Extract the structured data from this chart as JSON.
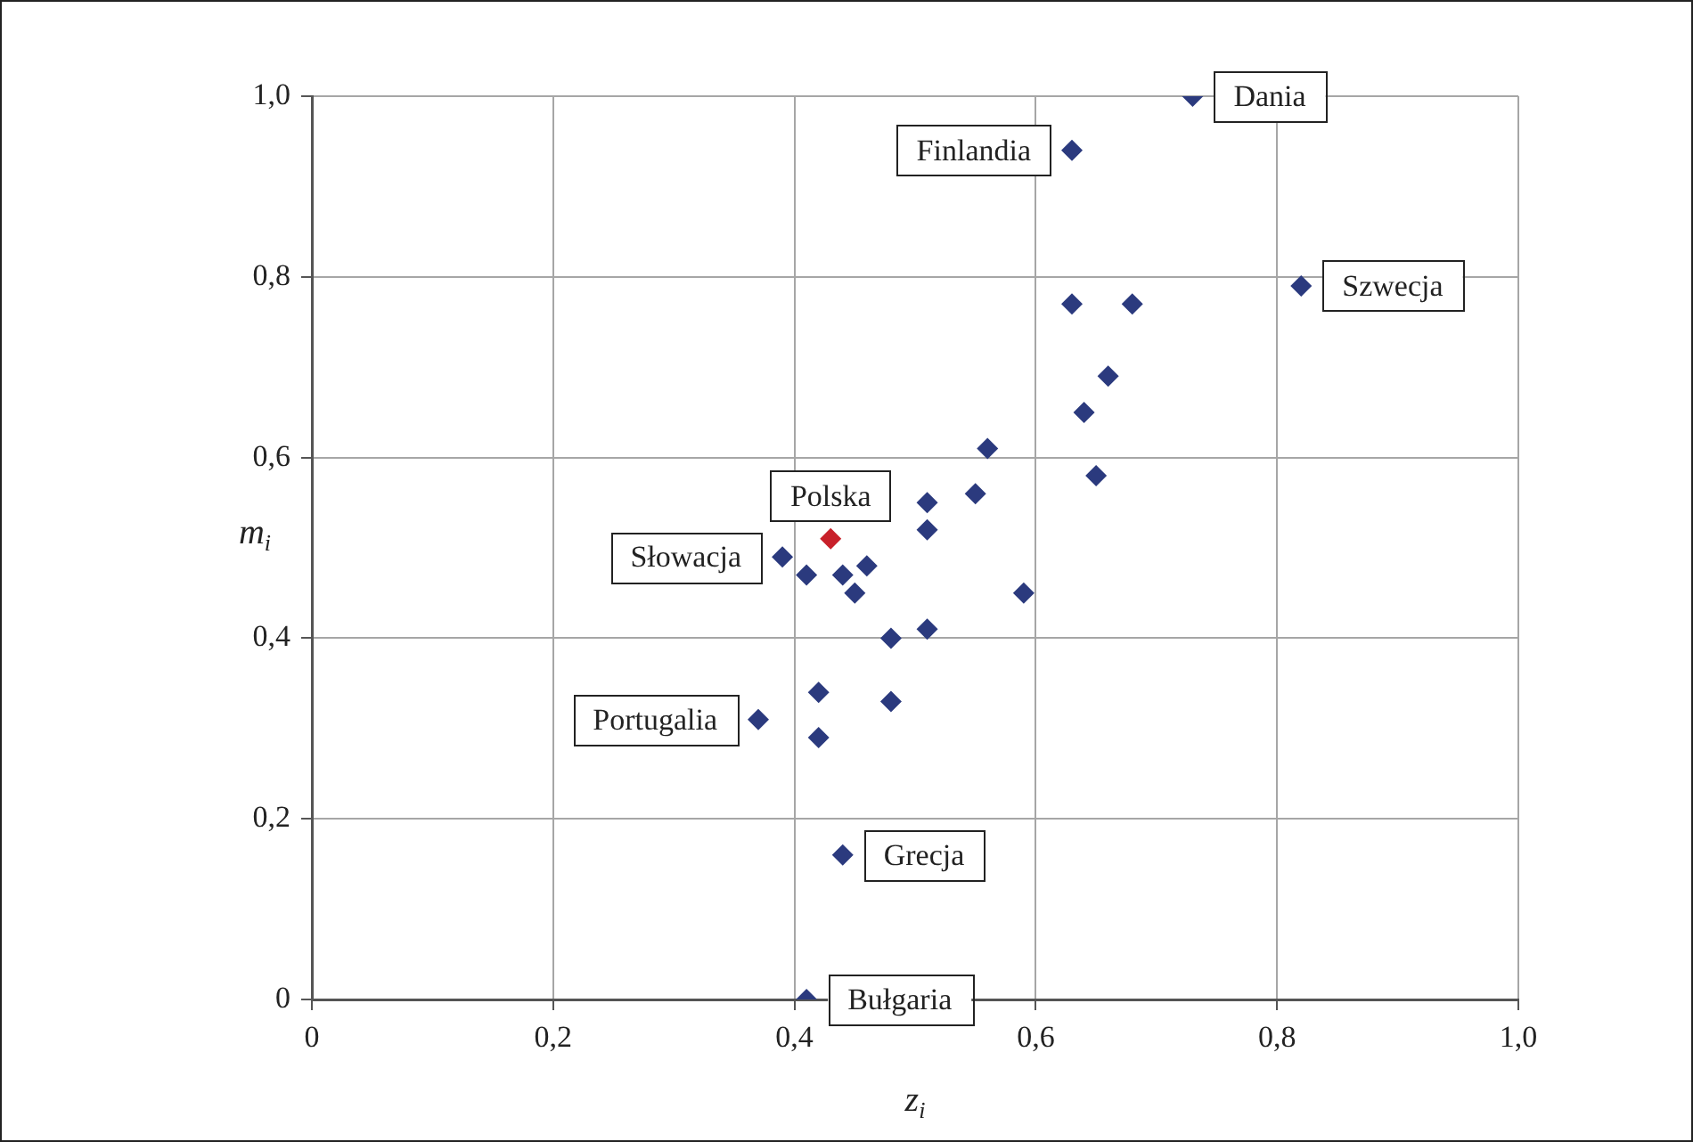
{
  "chart_data": {
    "type": "scatter",
    "xlabel": "z$_{i}$",
    "ylabel": "m$_{i}$",
    "x": [
      0.73,
      0.63,
      0.82,
      0.63,
      0.68,
      0.66,
      0.64,
      0.65,
      0.56,
      0.55,
      0.51,
      0.51,
      0.43,
      0.39,
      0.41,
      0.44,
      0.46,
      0.45,
      0.59,
      0.51,
      0.48,
      0.42,
      0.48,
      0.37,
      0.42,
      0.44,
      0.41
    ],
    "values": [
      1.0,
      0.94,
      0.79,
      0.77,
      0.77,
      0.69,
      0.65,
      0.58,
      0.61,
      0.56,
      0.55,
      0.52,
      0.51,
      0.49,
      0.47,
      0.47,
      0.48,
      0.45,
      0.45,
      0.41,
      0.4,
      0.34,
      0.33,
      0.31,
      0.29,
      0.16,
      0.0
    ],
    "colors": [
      "#2b3a7e",
      "#2b3a7e",
      "#2b3a7e",
      "#2b3a7e",
      "#2b3a7e",
      "#2b3a7e",
      "#2b3a7e",
      "#2b3a7e",
      "#2b3a7e",
      "#2b3a7e",
      "#2b3a7e",
      "#2b3a7e",
      "#c8202a",
      "#2b3a7e",
      "#2b3a7e",
      "#2b3a7e",
      "#2b3a7e",
      "#2b3a7e",
      "#2b3a7e",
      "#2b3a7e",
      "#2b3a7e",
      "#2b3a7e",
      "#2b3a7e",
      "#2b3a7e",
      "#2b3a7e",
      "#2b3a7e",
      "#2b3a7e"
    ],
    "marker": "diamond",
    "grid": true,
    "legend": false,
    "xlim": [
      0,
      1.0
    ],
    "ylim": [
      0,
      1.0
    ],
    "xticks": [
      0,
      {
        "value": 0.2,
        "label": "0,2"
      },
      {
        "value": 0.4,
        "label": "0,4"
      },
      {
        "value": 0.6,
        "label": "0,6"
      },
      {
        "value": 0.8,
        "label": "0,8"
      },
      {
        "value": 1.0,
        "label": "1,0"
      }
    ],
    "yticks": [
      0,
      {
        "value": 0.2,
        "label": "0,2"
      },
      {
        "value": 0.4,
        "label": "0,4"
      },
      {
        "value": 0.6,
        "label": "0,6"
      },
      {
        "value": 0.8,
        "label": "0,8"
      },
      {
        "value": 1.0,
        "label": "1,0"
      }
    ],
    "annotations": [
      {
        "text": "Dania",
        "x": 0.73,
        "y": 1.0
      },
      {
        "text": "Finlandia",
        "x": 0.63,
        "y": 0.94
      },
      {
        "text": "Szwecja",
        "x": 0.82,
        "y": 0.79
      },
      {
        "text": "Polska",
        "x": 0.43,
        "y": 0.51
      },
      {
        "text": "Słowacja",
        "x": 0.39,
        "y": 0.49
      },
      {
        "text": "Portugalia",
        "x": 0.37,
        "y": 0.31
      },
      {
        "text": "Grecja",
        "x": 0.44,
        "y": 0.16
      },
      {
        "text": "Bułgaria",
        "x": 0.41,
        "y": 0.0
      }
    ]
  }
}
